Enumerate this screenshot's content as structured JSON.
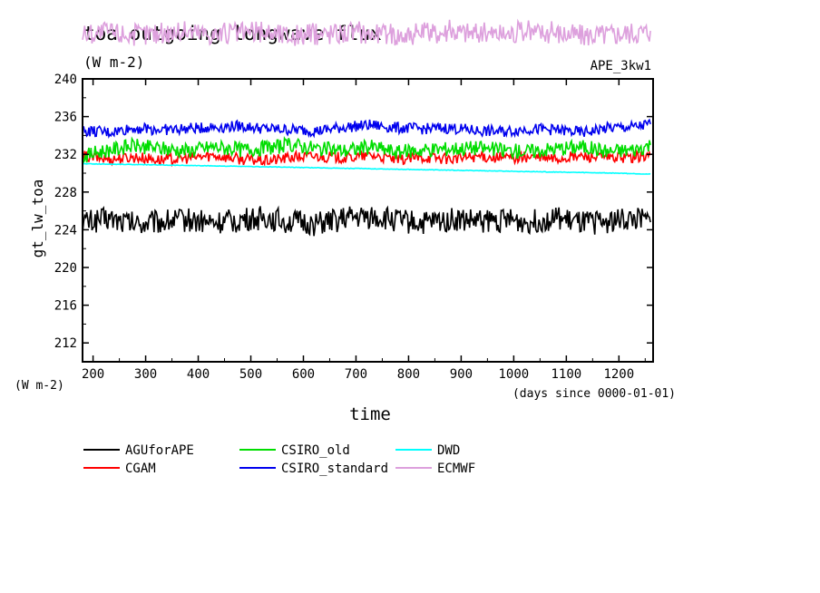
{
  "chart_data": {
    "type": "line",
    "title": "toa outgoing longwave flux",
    "subtitle": "(W m-2)",
    "experiment": "APE_3kw1",
    "xlabel": "time",
    "x_units": "(days since 0000-01-01)",
    "ylabel": "gt_lw_toa",
    "y_units": "(W m-2)",
    "xlim": [
      180,
      1265
    ],
    "ylim": [
      210,
      240
    ],
    "xticks": [
      200,
      300,
      400,
      500,
      600,
      700,
      800,
      900,
      1000,
      1100,
      1200
    ],
    "yticks": [
      212,
      216,
      220,
      224,
      228,
      232,
      236,
      240
    ],
    "grid": false,
    "legend_position": "bottom",
    "series": [
      {
        "name": "AGUforAPE",
        "color": "#000000",
        "x": [
          180,
          230,
          280,
          330,
          380,
          430,
          480,
          530,
          580,
          630,
          680,
          730,
          780,
          830,
          880,
          930,
          980,
          1030,
          1080,
          1130,
          1180,
          1230,
          1260
        ],
        "y": [
          224.8,
          225.2,
          224.6,
          224.9,
          225.1,
          224.7,
          225.0,
          225.3,
          224.8,
          224.6,
          225.2,
          225.4,
          225.0,
          224.7,
          225.1,
          224.9,
          225.0,
          224.8,
          225.2,
          224.6,
          224.9,
          225.1,
          224.8
        ]
      },
      {
        "name": "CGAM",
        "color": "#ff0000",
        "x": [
          180,
          230,
          280,
          330,
          380,
          430,
          480,
          530,
          580,
          630,
          680,
          730,
          780,
          830,
          880,
          930,
          980,
          1030,
          1080,
          1130,
          1180,
          1230,
          1260
        ],
        "y": [
          231.8,
          231.5,
          231.7,
          231.4,
          231.6,
          231.9,
          231.5,
          231.3,
          231.7,
          231.8,
          231.6,
          231.9,
          231.4,
          231.7,
          231.5,
          231.8,
          231.6,
          231.7,
          231.5,
          231.8,
          231.6,
          231.7,
          231.9
        ]
      },
      {
        "name": "CSIRO_old",
        "color": "#00dd00",
        "x": [
          180,
          230,
          280,
          330,
          380,
          430,
          480,
          530,
          580,
          630,
          680,
          730,
          780,
          830,
          880,
          930,
          980,
          1030,
          1080,
          1130,
          1180,
          1230,
          1260
        ],
        "y": [
          231.8,
          232.5,
          232.9,
          232.6,
          232.4,
          232.8,
          232.5,
          232.7,
          233.0,
          232.6,
          232.4,
          232.8,
          232.2,
          232.5,
          232.6,
          232.7,
          232.4,
          232.3,
          232.6,
          232.8,
          232.3,
          232.5,
          233.0
        ]
      },
      {
        "name": "CSIRO_standard",
        "color": "#0000ee",
        "x": [
          180,
          230,
          280,
          330,
          380,
          430,
          480,
          530,
          580,
          630,
          680,
          730,
          780,
          830,
          880,
          930,
          980,
          1030,
          1080,
          1130,
          1180,
          1230,
          1260
        ],
        "y": [
          234.5,
          234.3,
          234.8,
          234.6,
          234.7,
          234.9,
          235.0,
          234.7,
          234.6,
          234.5,
          234.9,
          235.1,
          234.8,
          234.7,
          234.8,
          234.5,
          234.4,
          234.7,
          234.6,
          234.3,
          234.8,
          234.9,
          235.2
        ]
      },
      {
        "name": "DWD",
        "color": "#00ffff",
        "x": [
          180,
          300,
          400,
          500,
          600,
          700,
          800,
          900,
          1000,
          1100,
          1200,
          1260
        ],
        "y": [
          231.0,
          230.9,
          230.8,
          230.7,
          230.6,
          230.5,
          230.4,
          230.3,
          230.2,
          230.1,
          230.0,
          229.9
        ]
      },
      {
        "name": "ECMWF",
        "color": "#dda0dd",
        "x": [
          180,
          230,
          280,
          330,
          380,
          430,
          480,
          530,
          580,
          630,
          680,
          730,
          780,
          830,
          880,
          930,
          980,
          1030,
          1080,
          1130,
          1180,
          1230,
          1260
        ],
        "y": [
          244.8,
          245.0,
          244.7,
          244.9,
          245.1,
          244.8,
          244.9,
          245.0,
          244.6,
          244.8,
          245.0,
          244.9,
          244.7,
          244.8,
          245.1,
          244.9,
          244.8,
          245.0,
          244.9,
          244.7,
          244.8,
          245.0,
          245.1
        ]
      }
    ]
  }
}
